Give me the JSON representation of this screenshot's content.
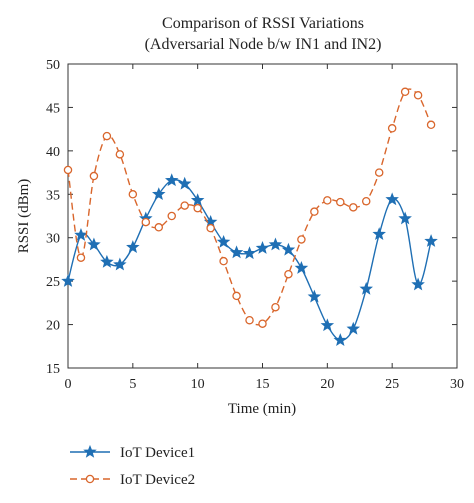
{
  "chart_data": {
    "type": "line",
    "title": "Comparison of RSSI Variations",
    "subtitle": "(Adversarial Node b/w IN1 and IN2)",
    "xlabel": "Time (min)",
    "ylabel": "RSSI (dBm)",
    "xlim": [
      0,
      30
    ],
    "ylim": [
      15,
      50
    ],
    "xticks": [
      0,
      5,
      10,
      15,
      20,
      25,
      30
    ],
    "yticks": [
      15,
      20,
      25,
      30,
      35,
      40,
      45,
      50
    ],
    "grid": false,
    "legend_position": "bottom",
    "x": [
      0,
      1,
      2,
      3,
      4,
      5,
      6,
      7,
      8,
      9,
      10,
      11,
      12,
      13,
      14,
      15,
      16,
      17,
      18,
      19,
      20,
      21,
      22,
      23,
      24,
      25,
      26,
      27,
      28
    ],
    "series": [
      {
        "name": "IoT Device1",
        "color": "#1f6fb4",
        "marker": "star",
        "line_style": "solid",
        "values": [
          25.0,
          30.3,
          29.2,
          27.2,
          26.9,
          28.9,
          32.2,
          35.0,
          36.6,
          36.2,
          34.3,
          31.8,
          29.5,
          28.3,
          28.2,
          28.8,
          29.2,
          28.6,
          26.5,
          23.2,
          19.9,
          18.2,
          19.5,
          24.1,
          30.4,
          34.4,
          32.2,
          24.6,
          29.6
        ]
      },
      {
        "name": "IoT Device2",
        "color": "#d9662c",
        "marker": "circle",
        "line_style": "dashed",
        "values": [
          37.8,
          27.7,
          37.1,
          41.7,
          39.6,
          35.0,
          31.8,
          31.2,
          32.5,
          33.7,
          33.4,
          31.1,
          27.3,
          23.3,
          20.5,
          20.1,
          22.0,
          25.8,
          29.8,
          33.0,
          34.3,
          34.1,
          33.5,
          34.2,
          37.5,
          42.6,
          46.8,
          46.4,
          43.0
        ]
      }
    ]
  }
}
